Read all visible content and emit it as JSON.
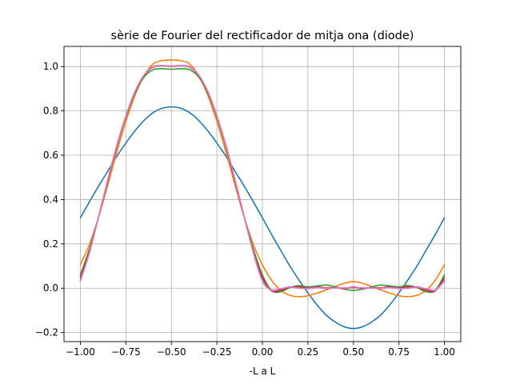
{
  "chart_data": {
    "type": "line",
    "title": "sèrie de Fourier del rectificador de mitja ona (diode)",
    "xlabel": "-L a L",
    "ylabel": "",
    "xlim": [
      -1.09,
      1.09
    ],
    "ylim": [
      -0.241,
      1.091
    ],
    "xticks": [
      -1.0,
      -0.75,
      -0.5,
      -0.25,
      0.0,
      0.25,
      0.5,
      0.75,
      1.0
    ],
    "xtick_labels": [
      "−1.00",
      "−0.75",
      "−0.50",
      "−0.25",
      "0.00",
      "0.25",
      "0.50",
      "0.75",
      "1.00"
    ],
    "yticks": [
      -0.2,
      0.0,
      0.2,
      0.4,
      0.6,
      0.8,
      1.0
    ],
    "ytick_labels": [
      "−0.2",
      "0.0",
      "0.2",
      "0.4",
      "0.6",
      "0.8",
      "1.0"
    ],
    "grid": true,
    "legend": "none",
    "x": [
      -1.0,
      -0.95,
      -0.9,
      -0.85,
      -0.8,
      -0.75,
      -0.7,
      -0.65,
      -0.6,
      -0.55,
      -0.5,
      -0.45,
      -0.4,
      -0.35,
      -0.3,
      -0.25,
      -0.2,
      -0.15,
      -0.1,
      -0.05,
      0.0,
      0.05,
      0.1,
      0.15,
      0.2,
      0.25,
      0.3,
      0.35,
      0.4,
      0.45,
      0.5,
      0.55,
      0.6,
      0.65,
      0.7,
      0.75,
      0.8,
      0.85,
      0.9,
      0.95,
      1.0
    ],
    "series": [
      {
        "color": "#1f77b4",
        "values": [
          0.318,
          0.39,
          0.461,
          0.527,
          0.595,
          0.655,
          0.71,
          0.757,
          0.792,
          0.812,
          0.818,
          0.812,
          0.792,
          0.757,
          0.71,
          0.655,
          0.595,
          0.527,
          0.461,
          0.39,
          0.318,
          0.243,
          0.172,
          0.101,
          0.038,
          -0.021,
          -0.075,
          -0.121,
          -0.153,
          -0.174,
          -0.182,
          -0.174,
          -0.153,
          -0.121,
          -0.075,
          -0.021,
          0.038,
          0.101,
          0.172,
          0.243,
          0.318
        ]
      },
      {
        "color": "#ff7f0e",
        "values": [
          0.106,
          0.198,
          0.321,
          0.464,
          0.614,
          0.752,
          0.87,
          0.958,
          1.012,
          1.027,
          1.03,
          1.027,
          1.012,
          0.958,
          0.87,
          0.752,
          0.614,
          0.464,
          0.321,
          0.198,
          0.106,
          0.036,
          -0.009,
          -0.032,
          -0.038,
          -0.034,
          -0.022,
          -0.008,
          0.008,
          0.022,
          0.03,
          0.022,
          0.008,
          -0.008,
          -0.022,
          -0.034,
          -0.038,
          -0.032,
          -0.009,
          0.036,
          0.106
        ]
      },
      {
        "color": "#2ca02c",
        "values": [
          0.06,
          0.178,
          0.322,
          0.48,
          0.636,
          0.772,
          0.88,
          0.953,
          0.986,
          0.99,
          0.988,
          0.99,
          0.986,
          0.953,
          0.88,
          0.772,
          0.636,
          0.48,
          0.322,
          0.178,
          0.06,
          -0.01,
          -0.016,
          0.002,
          0.012,
          0.006,
          0.01,
          0.014,
          0.006,
          -0.004,
          -0.01,
          -0.004,
          0.006,
          0.014,
          0.01,
          0.006,
          0.012,
          0.002,
          -0.016,
          -0.01,
          0.06
        ]
      },
      {
        "color": "#d62728",
        "values": [
          0.048,
          0.169,
          0.322,
          0.483,
          0.64,
          0.775,
          0.885,
          0.96,
          0.998,
          1.004,
          1.002,
          1.004,
          0.998,
          0.96,
          0.885,
          0.775,
          0.64,
          0.483,
          0.322,
          0.169,
          0.048,
          -0.012,
          -0.01,
          0.004,
          0.006,
          0.002,
          0.006,
          0.002,
          0.002,
          -0.002,
          0.005,
          -0.002,
          0.002,
          0.002,
          0.006,
          0.002,
          0.006,
          0.004,
          -0.01,
          -0.012,
          0.048
        ]
      },
      {
        "color": "#9467bd",
        "values": [
          0.036,
          0.164,
          0.323,
          0.486,
          0.642,
          0.777,
          0.887,
          0.962,
          1.0,
          1.004,
          1.0,
          1.004,
          1.0,
          0.962,
          0.887,
          0.777,
          0.642,
          0.486,
          0.323,
          0.164,
          0.036,
          -0.01,
          -0.004,
          0.006,
          0.0,
          0.0,
          0.004,
          -0.002,
          0.002,
          0.0,
          0.003,
          0.0,
          0.002,
          -0.002,
          0.004,
          0.0,
          0.0,
          0.006,
          -0.004,
          -0.01,
          0.036
        ]
      },
      {
        "color": "#e377c2",
        "values": [
          0.032,
          0.16,
          0.323,
          0.488,
          0.644,
          0.778,
          0.887,
          0.962,
          1.0,
          1.003,
          1.0,
          1.003,
          1.0,
          0.962,
          0.887,
          0.778,
          0.644,
          0.488,
          0.323,
          0.16,
          0.032,
          -0.008,
          -0.002,
          0.004,
          0.0,
          -0.002,
          0.002,
          0.0,
          0.0,
          0.002,
          0.0,
          0.002,
          0.0,
          0.0,
          0.002,
          -0.002,
          0.0,
          0.004,
          -0.002,
          -0.008,
          0.032
        ]
      }
    ]
  }
}
